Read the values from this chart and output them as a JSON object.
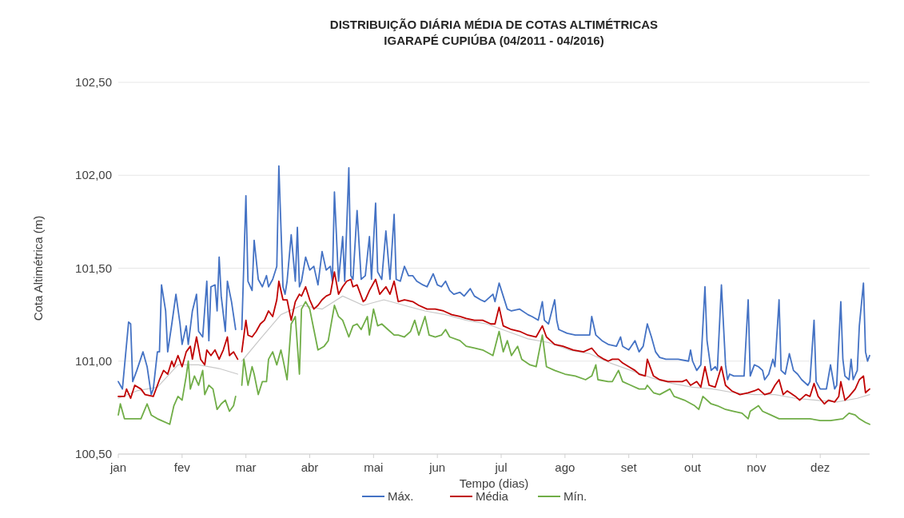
{
  "chart_data": {
    "type": "line",
    "title": "DISTRIBUIÇÃO DIÁRIA MÉDIA DE COTAS  ALTIMÉTRICAS",
    "subtitle": "IGARAPÉ CUPIÚBA (04/2011 - 04/2016)",
    "xlabel": "Tempo (dias)",
    "ylabel": "Cota  Altimétrica (m)",
    "xlim": [
      "--01-01",
      "--12-31"
    ],
    "xticks": [
      {
        "value": "--01-01",
        "label": "jan"
      },
      {
        "value": "--02-01",
        "label": "fev"
      },
      {
        "value": "--03-03",
        "label": "mar"
      },
      {
        "value": "--04-03",
        "label": "abr"
      },
      {
        "value": "--05-04",
        "label": "mai"
      },
      {
        "value": "--06-04",
        "label": "jun"
      },
      {
        "value": "--07-05",
        "label": "jul"
      },
      {
        "value": "--08-05",
        "label": "ago"
      },
      {
        "value": "--09-05",
        "label": "set"
      },
      {
        "value": "--10-06",
        "label": "out"
      },
      {
        "value": "--11-06",
        "label": "nov"
      },
      {
        "value": "--12-07",
        "label": "dez"
      }
    ],
    "ylim": [
      100.5,
      102.5
    ],
    "yticks": [
      {
        "value": 100.5,
        "label": "100,50"
      },
      {
        "value": 101,
        "label": "101,00"
      },
      {
        "value": 101.5,
        "label": "101,50"
      },
      {
        "value": 102,
        "label": "102,00"
      },
      {
        "value": 102.5,
        "label": "102,50"
      }
    ],
    "grid": "y",
    "legend": "bottom",
    "marker": "none",
    "line_style": "solid",
    "series": [
      {
        "color": "#c8c8c8",
        "x": [
          "--01-01",
          "--01-10",
          "--01-20",
          "--01-30",
          "--02-09",
          "--02-19",
          "--02-28",
          "--02-29",
          "--03-01",
          "--03-10",
          "--03-20",
          "--03-30",
          "--04-09",
          "--04-19",
          "--04-29",
          "--05-09",
          "--05-19",
          "--05-29",
          "--06-08",
          "--06-18",
          "--06-28",
          "--07-08",
          "--07-18",
          "--07-28",
          "--08-07",
          "--08-17",
          "--08-27",
          "--09-06",
          "--09-16",
          "--09-26",
          "--10-06",
          "--10-16",
          "--10-26",
          "--11-05",
          "--11-15",
          "--11-25",
          "--12-05",
          "--12-15",
          "--12-25",
          "--12-31"
        ],
        "values": [
          100.8,
          100.84,
          100.86,
          100.98,
          100.98,
          100.96,
          100.93,
          null,
          101.0,
          101.12,
          101.25,
          101.3,
          101.28,
          101.35,
          101.3,
          101.33,
          101.3,
          101.27,
          101.25,
          101.22,
          101.2,
          101.16,
          101.12,
          101.1,
          101.06,
          101.04,
          100.99,
          100.95,
          100.91,
          100.88,
          100.86,
          100.85,
          100.83,
          100.82,
          100.82,
          100.8,
          100.79,
          100.78,
          100.8,
          100.82
        ]
      },
      {
        "name": "Máx.",
        "color": "#4472c4",
        "x": [
          "--01-01",
          "--01-03",
          "--01-06",
          "--01-07",
          "--01-08",
          "--01-10",
          "--01-13",
          "--01-15",
          "--01-17",
          "--01-18",
          "--01-20",
          "--01-21",
          "--01-22",
          "--01-24",
          "--01-25",
          "--01-27",
          "--01-29",
          "--01-31",
          "--02-01",
          "--02-03",
          "--02-04",
          "--02-06",
          "--02-08",
          "--02-09",
          "--02-11",
          "--02-13",
          "--02-14",
          "--02-15",
          "--02-17",
          "--02-18",
          "--02-19",
          "--02-20",
          "--02-22",
          "--02-23",
          "--02-25",
          "--02-27",
          "--02-29",
          "--03-01",
          "--03-03",
          "--03-04",
          "--03-06",
          "--03-07",
          "--03-09",
          "--03-11",
          "--03-13",
          "--03-14",
          "--03-16",
          "--03-18",
          "--03-19",
          "--03-21",
          "--03-22",
          "--03-23",
          "--03-25",
          "--03-27",
          "--03-28",
          "--03-29",
          "--03-30",
          "--04-01",
          "--04-03",
          "--04-05",
          "--04-07",
          "--04-09",
          "--04-11",
          "--04-13",
          "--04-14",
          "--04-15",
          "--04-17",
          "--04-19",
          "--04-20",
          "--04-22",
          "--04-23",
          "--04-24",
          "--04-26",
          "--04-28",
          "--04-30",
          "--05-02",
          "--05-03",
          "--05-05",
          "--05-06",
          "--05-08",
          "--05-10",
          "--05-12",
          "--05-14",
          "--05-15",
          "--05-17",
          "--05-19",
          "--05-21",
          "--05-23",
          "--05-25",
          "--05-28",
          "--05-30",
          "--06-02",
          "--06-04",
          "--06-06",
          "--06-08",
          "--06-10",
          "--06-12",
          "--06-15",
          "--06-17",
          "--06-20",
          "--06-22",
          "--06-25",
          "--06-27",
          "--07-01",
          "--07-02",
          "--07-04",
          "--07-06",
          "--07-08",
          "--07-10",
          "--07-14",
          "--07-18",
          "--07-20",
          "--07-23",
          "--07-25",
          "--07-26",
          "--07-28",
          "--07-31",
          "--08-01",
          "--08-02",
          "--08-06",
          "--08-10",
          "--08-14",
          "--08-17",
          "--08-18",
          "--08-20",
          "--08-23",
          "--08-26",
          "--08-30",
          "--09-01",
          "--09-02",
          "--09-05",
          "--09-08",
          "--09-10",
          "--09-12",
          "--09-14",
          "--09-16",
          "--09-18",
          "--09-20",
          "--09-23",
          "--09-25",
          "--09-29",
          "--10-04",
          "--10-05",
          "--10-06",
          "--10-08",
          "--10-10",
          "--10-12",
          "--10-13",
          "--10-15",
          "--10-17",
          "--10-18",
          "--10-20",
          "--10-22",
          "--10-23",
          "--10-24",
          "--10-26",
          "--10-29",
          "--10-31",
          "--11-02",
          "--11-03",
          "--11-05",
          "--11-07",
          "--11-09",
          "--11-10",
          "--11-12",
          "--11-14",
          "--11-15",
          "--11-17",
          "--11-18",
          "--11-20",
          "--11-22",
          "--11-24",
          "--11-26",
          "--11-28",
          "--12-01",
          "--12-02",
          "--12-04",
          "--12-05",
          "--12-07",
          "--12-10",
          "--12-12",
          "--12-14",
          "--12-15",
          "--12-17",
          "--12-18",
          "--12-19",
          "--12-21",
          "--12-22",
          "--12-23",
          "--12-25",
          "--12-26",
          "--12-28",
          "--12-29",
          "--12-30",
          "--12-31"
        ],
        "values": [
          100.89,
          100.85,
          101.21,
          101.2,
          100.89,
          100.95,
          101.05,
          100.97,
          100.82,
          100.85,
          101.05,
          101.05,
          101.41,
          101.27,
          101.05,
          101.2,
          101.36,
          101.2,
          101.09,
          101.19,
          101.09,
          101.27,
          101.36,
          101.16,
          101.13,
          101.43,
          101.11,
          101.4,
          101.41,
          101.27,
          101.56,
          101.35,
          101.16,
          101.43,
          101.32,
          101.17,
          null,
          101.17,
          101.89,
          101.43,
          101.38,
          101.65,
          101.44,
          101.4,
          101.46,
          101.4,
          101.44,
          101.51,
          102.05,
          101.4,
          101.36,
          101.43,
          101.68,
          101.43,
          101.72,
          101.4,
          101.43,
          101.56,
          101.49,
          101.51,
          101.41,
          101.59,
          101.49,
          101.51,
          101.43,
          101.91,
          101.43,
          101.67,
          101.43,
          102.04,
          101.46,
          101.44,
          101.81,
          101.44,
          101.46,
          101.67,
          101.44,
          101.85,
          101.48,
          101.44,
          101.7,
          101.44,
          101.79,
          101.44,
          101.43,
          101.51,
          101.46,
          101.46,
          101.43,
          101.41,
          101.4,
          101.47,
          101.41,
          101.4,
          101.43,
          101.38,
          101.36,
          101.37,
          101.35,
          101.39,
          101.35,
          101.33,
          101.32,
          101.36,
          101.32,
          101.42,
          101.35,
          101.28,
          101.27,
          101.28,
          101.25,
          101.24,
          101.22,
          101.32,
          101.22,
          101.2,
          101.33,
          101.22,
          101.17,
          101.15,
          101.14,
          101.14,
          101.14,
          101.24,
          101.14,
          101.11,
          101.09,
          101.08,
          101.13,
          101.08,
          101.06,
          101.11,
          101.05,
          101.08,
          101.2,
          101.13,
          101.05,
          101.02,
          101.01,
          101.01,
          101.01,
          101.0,
          101.06,
          101.0,
          100.95,
          100.98,
          101.4,
          101.11,
          100.95,
          100.97,
          100.95,
          101.41,
          100.98,
          100.9,
          100.93,
          100.92,
          100.92,
          100.92,
          101.33,
          100.92,
          100.98,
          100.97,
          100.95,
          100.9,
          100.93,
          101.01,
          100.97,
          101.33,
          100.95,
          100.93,
          101.04,
          100.95,
          100.93,
          100.9,
          100.87,
          100.89,
          101.22,
          100.89,
          100.85,
          100.85,
          100.98,
          100.85,
          100.87,
          101.32,
          101.01,
          100.92,
          100.9,
          101.01,
          100.9,
          100.95,
          101.19,
          101.42,
          101.05,
          101.0,
          101.03
        ]
      },
      {
        "name": "Média",
        "color": "#c00000",
        "x": [
          "--01-01",
          "--01-04",
          "--01-05",
          "--01-07",
          "--01-09",
          "--01-12",
          "--01-14",
          "--01-18",
          "--01-20",
          "--01-21",
          "--01-23",
          "--01-25",
          "--01-27",
          "--01-28",
          "--01-30",
          "--02-01",
          "--02-03",
          "--02-05",
          "--02-06",
          "--02-08",
          "--02-10",
          "--02-12",
          "--02-13",
          "--02-15",
          "--02-17",
          "--02-19",
          "--02-21",
          "--02-23",
          "--02-24",
          "--02-26",
          "--02-28",
          "--02-29",
          "--03-01",
          "--03-03",
          "--03-04",
          "--03-06",
          "--03-08",
          "--03-10",
          "--03-12",
          "--03-14",
          "--03-16",
          "--03-18",
          "--03-19",
          "--03-21",
          "--03-23",
          "--03-25",
          "--03-27",
          "--03-29",
          "--03-30",
          "--04-01",
          "--04-03",
          "--04-05",
          "--04-07",
          "--04-09",
          "--04-11",
          "--04-13",
          "--04-15",
          "--04-17",
          "--04-19",
          "--04-21",
          "--04-23",
          "--04-24",
          "--04-26",
          "--04-29",
          "--04-30",
          "--05-02",
          "--05-05",
          "--05-07",
          "--05-10",
          "--05-12",
          "--05-14",
          "--05-16",
          "--05-19",
          "--05-23",
          "--05-26",
          "--05-30",
          "--06-03",
          "--06-07",
          "--06-11",
          "--06-15",
          "--06-18",
          "--06-22",
          "--06-26",
          "--06-30",
          "--07-02",
          "--07-04",
          "--07-06",
          "--07-10",
          "--07-14",
          "--07-18",
          "--07-22",
          "--07-25",
          "--07-27",
          "--07-31",
          "--08-04",
          "--08-09",
          "--08-14",
          "--08-18",
          "--08-21",
          "--08-24",
          "--08-26",
          "--08-28",
          "--08-31",
          "--09-02",
          "--09-05",
          "--09-08",
          "--09-10",
          "--09-13",
          "--09-14",
          "--09-17",
          "--09-20",
          "--09-24",
          "--09-28",
          "--10-01",
          "--10-03",
          "--10-05",
          "--10-08",
          "--10-10",
          "--10-12",
          "--10-14",
          "--10-17",
          "--10-20",
          "--10-22",
          "--10-25",
          "--10-29",
          "--11-02",
          "--11-05",
          "--11-07",
          "--11-10",
          "--11-13",
          "--11-15",
          "--11-17",
          "--11-19",
          "--11-21",
          "--11-25",
          "--11-27",
          "--11-30",
          "--12-02",
          "--12-04",
          "--12-06",
          "--12-09",
          "--12-11",
          "--12-14",
          "--12-16",
          "--12-17",
          "--12-19",
          "--12-21",
          "--12-24",
          "--12-26",
          "--12-28",
          "--12-29",
          "--12-31"
        ],
        "values": [
          100.81,
          100.81,
          100.85,
          100.8,
          100.87,
          100.85,
          100.82,
          100.81,
          100.87,
          100.9,
          100.95,
          100.93,
          101.0,
          100.97,
          101.03,
          100.97,
          101.05,
          101.08,
          101.01,
          101.13,
          101.01,
          100.98,
          101.06,
          101.03,
          101.06,
          101.01,
          101.06,
          101.13,
          101.03,
          101.05,
          101.01,
          null,
          101.05,
          101.22,
          101.14,
          101.13,
          101.16,
          101.2,
          101.22,
          101.27,
          101.24,
          101.33,
          101.43,
          101.33,
          101.33,
          101.22,
          101.32,
          101.36,
          101.35,
          101.4,
          101.33,
          101.28,
          101.3,
          101.33,
          101.35,
          101.36,
          101.48,
          101.36,
          101.4,
          101.43,
          101.44,
          101.4,
          101.41,
          101.32,
          101.33,
          101.38,
          101.44,
          101.36,
          101.4,
          101.36,
          101.43,
          101.32,
          101.33,
          101.32,
          101.3,
          101.28,
          101.28,
          101.27,
          101.25,
          101.24,
          101.23,
          101.22,
          101.22,
          101.2,
          101.2,
          101.29,
          101.19,
          101.17,
          101.16,
          101.14,
          101.13,
          101.19,
          101.13,
          101.09,
          101.08,
          101.06,
          101.05,
          101.07,
          101.03,
          101.01,
          101.0,
          101.01,
          101.01,
          100.99,
          100.97,
          100.95,
          100.93,
          100.92,
          101.01,
          100.92,
          100.9,
          100.89,
          100.89,
          100.89,
          100.9,
          100.87,
          100.89,
          100.86,
          100.97,
          100.87,
          100.86,
          100.97,
          100.87,
          100.84,
          100.82,
          100.83,
          100.84,
          100.85,
          100.82,
          100.83,
          100.87,
          100.9,
          100.82,
          100.84,
          100.81,
          100.79,
          100.82,
          100.81,
          100.88,
          100.81,
          100.77,
          100.79,
          100.78,
          100.81,
          100.89,
          100.79,
          100.81,
          100.85,
          100.9,
          100.92,
          100.83,
          100.85
        ]
      },
      {
        "name": "Mín.",
        "color": "#70ad47",
        "x": [
          "--01-01",
          "--01-02",
          "--01-04",
          "--01-07",
          "--01-09",
          "--01-12",
          "--01-15",
          "--01-17",
          "--01-20",
          "--01-22",
          "--01-26",
          "--01-28",
          "--01-30",
          "--02-01",
          "--02-03",
          "--02-04",
          "--02-05",
          "--02-07",
          "--02-09",
          "--02-11",
          "--02-12",
          "--02-14",
          "--02-16",
          "--02-18",
          "--02-20",
          "--02-22",
          "--02-24",
          "--02-26",
          "--02-27",
          "--02-29",
          "--03-01",
          "--03-02",
          "--03-04",
          "--03-06",
          "--03-07",
          "--03-09",
          "--03-11",
          "--03-13",
          "--03-14",
          "--03-16",
          "--03-18",
          "--03-20",
          "--03-21",
          "--03-23",
          "--03-25",
          "--03-27",
          "--03-29",
          "--03-30",
          "--04-01",
          "--04-03",
          "--04-05",
          "--04-07",
          "--04-10",
          "--04-12",
          "--04-15",
          "--04-17",
          "--04-19",
          "--04-21",
          "--04-22",
          "--04-24",
          "--04-26",
          "--04-28",
          "--05-01",
          "--05-02",
          "--05-04",
          "--05-06",
          "--05-08",
          "--05-11",
          "--05-14",
          "--05-16",
          "--05-19",
          "--05-22",
          "--05-24",
          "--05-26",
          "--05-29",
          "--05-31",
          "--06-03",
          "--06-06",
          "--06-08",
          "--06-10",
          "--06-15",
          "--06-18",
          "--06-22",
          "--06-26",
          "--07-01",
          "--07-04",
          "--07-06",
          "--07-08",
          "--07-10",
          "--07-13",
          "--07-15",
          "--07-19",
          "--07-22",
          "--07-25",
          "--07-27",
          "--07-31",
          "--08-05",
          "--08-10",
          "--08-15",
          "--08-18",
          "--08-20",
          "--08-21",
          "--08-26",
          "--08-28",
          "--08-31",
          "--09-02",
          "--09-06",
          "--09-10",
          "--09-13",
          "--09-14",
          "--09-17",
          "--09-20",
          "--09-25",
          "--09-27",
          "--10-02",
          "--10-07",
          "--10-09",
          "--10-11",
          "--10-15",
          "--10-18",
          "--10-22",
          "--10-26",
          "--10-30",
          "--11-02",
          "--11-03",
          "--11-07",
          "--11-09",
          "--11-13",
          "--11-17",
          "--11-22",
          "--11-27",
          "--12-02",
          "--12-07",
          "--12-12",
          "--12-18",
          "--12-21",
          "--12-24",
          "--12-26",
          "--12-29",
          "--12-31"
        ],
        "values": [
          100.71,
          100.77,
          100.69,
          100.69,
          100.69,
          100.69,
          100.77,
          100.71,
          100.69,
          100.68,
          100.66,
          100.76,
          100.81,
          100.79,
          100.92,
          101.0,
          100.85,
          100.92,
          100.87,
          100.95,
          100.82,
          100.87,
          100.85,
          100.74,
          100.77,
          100.79,
          100.73,
          100.76,
          100.81,
          null,
          100.87,
          101.01,
          100.87,
          100.97,
          100.93,
          100.82,
          100.89,
          100.89,
          101.01,
          101.05,
          100.98,
          101.06,
          101.01,
          100.9,
          101.2,
          101.24,
          100.93,
          101.28,
          101.32,
          101.28,
          101.17,
          101.06,
          101.08,
          101.11,
          101.3,
          101.24,
          101.22,
          101.16,
          101.13,
          101.19,
          101.2,
          101.17,
          101.24,
          101.14,
          101.28,
          101.19,
          101.2,
          101.17,
          101.14,
          101.14,
          101.13,
          101.16,
          101.22,
          101.14,
          101.24,
          101.14,
          101.13,
          101.14,
          101.17,
          101.13,
          101.11,
          101.08,
          101.07,
          101.06,
          101.03,
          101.16,
          101.05,
          101.11,
          101.03,
          101.08,
          101.01,
          100.98,
          100.97,
          101.14,
          100.97,
          100.95,
          100.93,
          100.92,
          100.9,
          100.92,
          100.98,
          100.9,
          100.89,
          100.89,
          100.95,
          100.89,
          100.87,
          100.85,
          100.85,
          100.87,
          100.83,
          100.82,
          100.85,
          100.81,
          100.79,
          100.76,
          100.74,
          100.81,
          100.77,
          100.76,
          100.74,
          100.73,
          100.72,
          100.69,
          100.73,
          100.76,
          100.73,
          100.71,
          100.69,
          100.69,
          100.69,
          100.69,
          100.68,
          100.68,
          100.69,
          100.72,
          100.71,
          100.69,
          100.67,
          100.66
        ]
      }
    ]
  }
}
